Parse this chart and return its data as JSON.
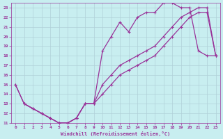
{
  "xlabel": "Windchill (Refroidissement éolien,°C)",
  "bg_color": "#c8eef0",
  "grid_color": "#b0d0d8",
  "line_color": "#993399",
  "xlim": [
    -0.5,
    23.5
  ],
  "ylim": [
    11,
    23.5
  ],
  "xticks": [
    0,
    1,
    2,
    3,
    4,
    5,
    6,
    7,
    8,
    9,
    10,
    11,
    12,
    13,
    14,
    15,
    16,
    17,
    18,
    19,
    20,
    21,
    22,
    23
  ],
  "yticks": [
    11,
    12,
    13,
    14,
    15,
    16,
    17,
    18,
    19,
    20,
    21,
    22,
    23
  ],
  "line1_x": [
    0,
    1,
    2,
    3,
    4,
    5,
    6,
    7,
    8,
    9,
    10,
    11,
    12,
    13,
    14,
    15,
    16,
    17,
    18,
    19,
    20,
    21,
    22,
    23
  ],
  "line1_y": [
    15,
    13,
    12.5,
    12,
    11.5,
    11,
    11,
    11.5,
    13,
    13,
    18.5,
    20,
    21.5,
    20.5,
    22,
    22.5,
    22.5,
    23.5,
    23.5,
    23,
    23,
    18.5,
    18,
    18
  ],
  "line2_x": [
    1,
    2,
    3,
    4,
    5,
    6,
    7,
    8,
    9,
    10,
    11,
    12,
    13,
    14,
    15,
    16,
    17,
    18,
    19,
    20,
    21,
    22,
    23
  ],
  "line2_y": [
    13,
    12.5,
    12,
    11.5,
    11,
    11,
    11.5,
    13,
    13,
    15,
    16,
    17,
    17.5,
    18,
    18.5,
    19,
    20,
    21,
    22,
    22.5,
    23,
    23,
    18
  ],
  "line3_x": [
    0,
    1,
    2,
    3,
    4,
    5,
    6,
    7,
    8,
    9,
    10,
    11,
    12,
    13,
    14,
    15,
    16,
    17,
    18,
    19,
    20,
    21,
    22,
    23
  ],
  "line3_y": [
    15,
    13,
    12.5,
    12,
    11.5,
    11,
    11,
    11.5,
    13,
    13,
    14,
    15,
    16,
    16.5,
    17,
    17.5,
    18,
    19,
    20,
    21,
    22,
    22.5,
    22.5,
    18
  ],
  "marker_size": 2.5,
  "line_width": 0.9
}
